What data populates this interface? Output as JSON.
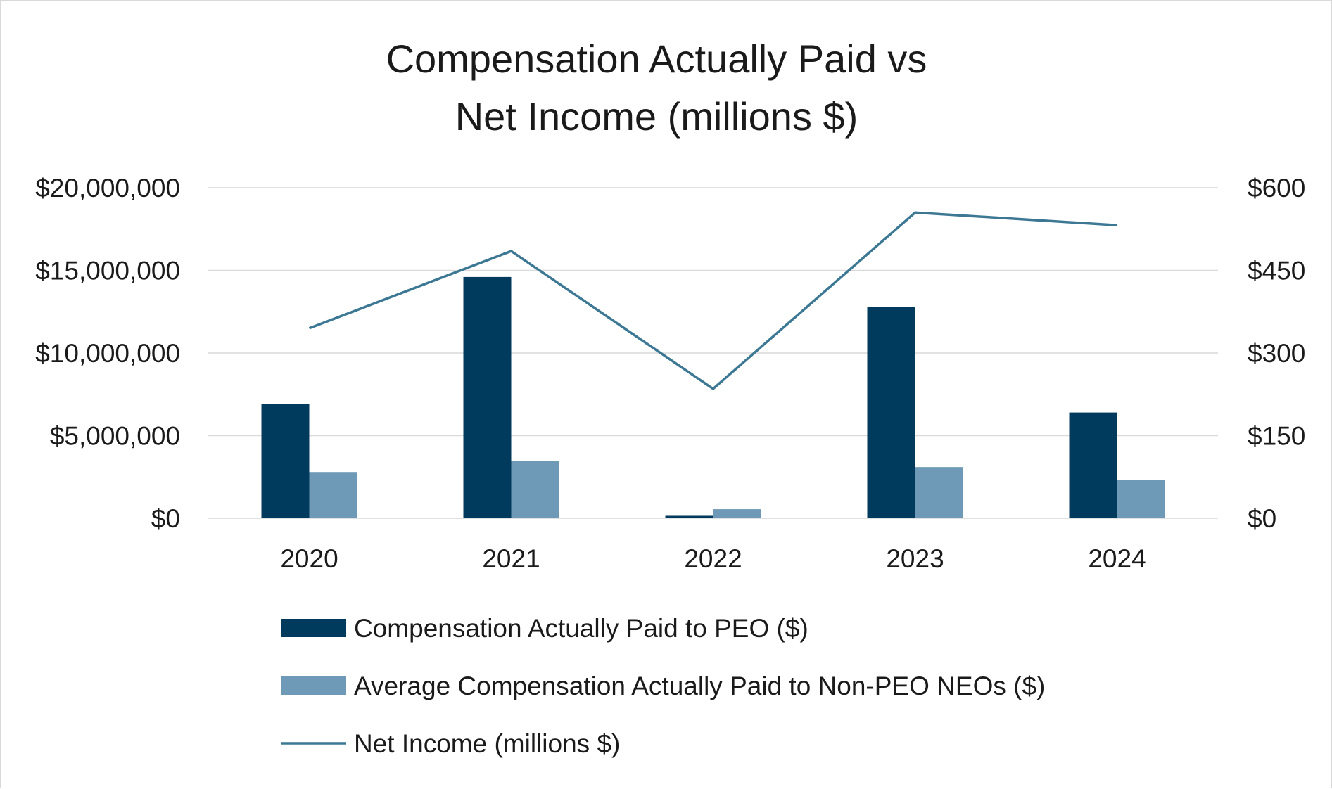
{
  "chart_data": {
    "type": "bar",
    "title_lines": [
      "Compensation Actually Paid vs",
      "Net Income (millions $)"
    ],
    "categories": [
      "2020",
      "2021",
      "2022",
      "2023",
      "2024"
    ],
    "series": [
      {
        "name": "Compensation Actually Paid to PEO ($)",
        "type": "bar",
        "axis": "left",
        "color": "#003a5c",
        "values": [
          6900000,
          14600000,
          150000,
          12800000,
          6400000
        ]
      },
      {
        "name": "Average Compensation Actually Paid to Non-PEO NEOs ($)",
        "type": "bar",
        "axis": "left",
        "color": "#6f9ab7",
        "values": [
          2800000,
          3450000,
          550000,
          3100000,
          2300000
        ]
      },
      {
        "name": "Net Income (millions $)",
        "type": "line",
        "axis": "right",
        "color": "#3c7894",
        "values": [
          345,
          485,
          235,
          555,
          532
        ]
      }
    ],
    "y_left": {
      "range": [
        0,
        20000000
      ],
      "ticks": [
        0,
        5000000,
        10000000,
        15000000,
        20000000
      ],
      "tick_labels": [
        "$0",
        "$5,000,000",
        "$10,000,000",
        "$15,000,000",
        "$20,000,000"
      ]
    },
    "y_right": {
      "range": [
        0,
        600
      ],
      "ticks": [
        0,
        150,
        300,
        450,
        600
      ],
      "tick_labels": [
        "$0",
        "$150",
        "$300",
        "$450",
        "$600"
      ]
    },
    "grid": true,
    "legend_position": "bottom"
  }
}
